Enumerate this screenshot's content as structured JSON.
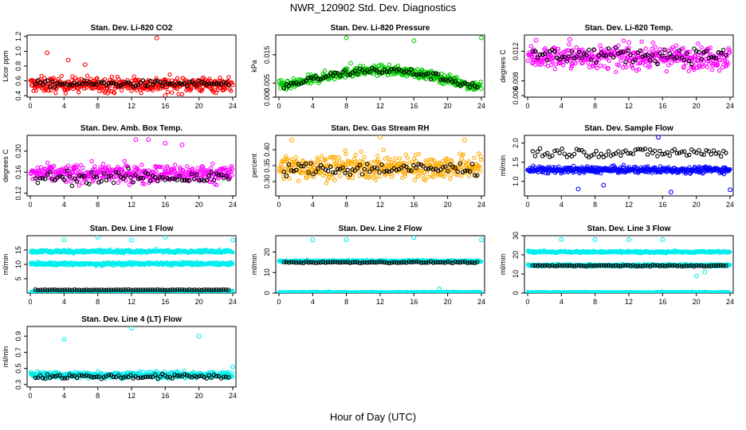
{
  "page": {
    "title": "NWR_120902 Std. Dev. Diagnostics",
    "xlabel": "Hour of Day (UTC)"
  },
  "chart_data": [
    {
      "type": "scatter",
      "title": "Stan. Dev. Li-820 CO2",
      "ylabel": "Licor ppm",
      "xlim": [
        0,
        24
      ],
      "ylim": [
        0.38,
        1.22
      ],
      "yticks": [
        "0.4",
        "0.6",
        "0.8",
        "1.0",
        "1.2"
      ],
      "ytick_values": [
        0.4,
        0.6,
        0.8,
        1.0,
        1.2
      ],
      "xticks": [
        "0",
        "4",
        "8",
        "12",
        "16",
        "20",
        "24"
      ],
      "color": "#ff0000",
      "base": 0.55,
      "spread": 0.12,
      "black_base": 0.56,
      "black_spread": 0.05,
      "outliers": [
        [
          15,
          1.18
        ],
        [
          2,
          0.98
        ],
        [
          4.5,
          0.88
        ],
        [
          6.5,
          0.82
        ],
        [
          16,
          0.4
        ]
      ]
    },
    {
      "type": "scatter",
      "title": "Stan. Dev. Li-820 Pressure",
      "ylabel": "kPa",
      "xlim": [
        0,
        24
      ],
      "ylim": [
        0.0,
        0.022
      ],
      "yticks": [
        "0.000",
        "0.005",
        "0.015"
      ],
      "ytick_values": [
        0.0,
        0.005,
        0.015
      ],
      "xticks": [
        "0",
        "4",
        "8",
        "12",
        "16",
        "20",
        "24"
      ],
      "color": "#00cc00",
      "base": 0.004,
      "spread": 0.002,
      "curve": "arch",
      "arch_peak": 0.0095,
      "black_base": 0.004,
      "black_spread": 0.0015,
      "outliers": [
        [
          8,
          0.021
        ],
        [
          24,
          0.021
        ],
        [
          16,
          0.02
        ],
        [
          8.5,
          0.012
        ]
      ]
    },
    {
      "type": "scatter",
      "title": "Stan. Dev. Li-820 Temp.",
      "ylabel": "degrees C",
      "xlim": [
        0,
        24
      ],
      "ylim": [
        0.0058,
        0.0142
      ],
      "yticks": [
        "0.006",
        "0.008",
        "0.012"
      ],
      "ytick_values": [
        0.006,
        0.008,
        0.012
      ],
      "xticks": [
        "0",
        "4",
        "8",
        "12",
        "16",
        "20",
        "24"
      ],
      "color": "#ff00ff",
      "base": 0.0112,
      "spread": 0.0018,
      "black_base": 0.0115,
      "black_spread": 0.0012,
      "outliers": [
        [
          1,
          0.0135
        ],
        [
          5,
          0.0136
        ],
        [
          12,
          0.0132
        ]
      ]
    },
    {
      "type": "scatter",
      "title": "Stan. Dev. Amb. Box Temp.",
      "ylabel": "degrees C",
      "xlim": [
        0,
        24
      ],
      "ylim": [
        0.115,
        0.23
      ],
      "yticks": [
        "0.12",
        "0.16",
        "0.20"
      ],
      "ytick_values": [
        0.12,
        0.16,
        0.2
      ],
      "xticks": [
        "0",
        "4",
        "8",
        "12",
        "16",
        "20",
        "24"
      ],
      "color": "#ff00ff",
      "base": 0.157,
      "spread": 0.02,
      "black_base": 0.15,
      "black_spread": 0.015,
      "outliers": [
        [
          12.5,
          0.222
        ],
        [
          14,
          0.222
        ],
        [
          16,
          0.215
        ],
        [
          18,
          0.212
        ]
      ]
    },
    {
      "type": "scatter",
      "title": "Stan. Dev. Gas Stream RH",
      "ylabel": "percent",
      "xlim": [
        0,
        24
      ],
      "ylim": [
        0.255,
        0.445
      ],
      "yticks": [
        "0.30",
        "0.35",
        "0.40"
      ],
      "ytick_values": [
        0.3,
        0.35,
        0.4
      ],
      "xticks": [
        "0",
        "4",
        "8",
        "12",
        "16",
        "20",
        "24"
      ],
      "color": "#ffaa00",
      "base": 0.345,
      "spread": 0.045,
      "black_base": 0.34,
      "black_spread": 0.025,
      "outliers": [
        [
          1.5,
          0.43
        ],
        [
          12,
          0.44
        ],
        [
          22,
          0.43
        ]
      ]
    },
    {
      "type": "scatter",
      "title": "Stan. Dev. Sample Flow",
      "ylabel": "ml/min",
      "xlim": [
        0,
        24
      ],
      "ylim": [
        0.62,
        2.2
      ],
      "yticks": [
        "1.0",
        "1.5",
        "2.0"
      ],
      "ytick_values": [
        1.0,
        1.5,
        2.0
      ],
      "xticks": [
        "0",
        "4",
        "8",
        "12",
        "16",
        "20",
        "24"
      ],
      "color": "#0000ff",
      "base": 1.3,
      "spread": 0.1,
      "black_base": 1.75,
      "black_spread": 0.15,
      "outliers": [
        [
          15.5,
          2.15
        ],
        [
          6,
          0.8
        ],
        [
          9,
          0.9
        ],
        [
          17,
          0.72
        ],
        [
          24,
          0.78
        ]
      ]
    },
    {
      "type": "scatter",
      "title": "Stan. Dev. Line 1 Flow",
      "ylabel": "ml/min",
      "xlim": [
        0,
        24
      ],
      "ylim": [
        0,
        20
      ],
      "yticks": [
        "5",
        "10",
        "15"
      ],
      "ytick_values": [
        5,
        10,
        15
      ],
      "xticks": [
        "0",
        "4",
        "8",
        "12",
        "16",
        "20",
        "24"
      ],
      "color": "#00eeee",
      "bands": [
        14.5,
        10.2,
        0.5
      ],
      "band_spread": 0.4,
      "black_base": 1.1,
      "black_spread": 0.15,
      "outliers": [
        [
          4,
          18.5
        ],
        [
          8,
          19.5
        ],
        [
          12,
          18.5
        ],
        [
          16,
          19.5
        ],
        [
          24,
          18.5
        ]
      ]
    },
    {
      "type": "scatter",
      "title": "Stan. Dev. Line 2 Flow",
      "ylabel": "ml/min",
      "xlim": [
        0,
        24
      ],
      "ylim": [
        0,
        28
      ],
      "yticks": [
        "0",
        "10",
        "20"
      ],
      "ytick_values": [
        0,
        10,
        20
      ],
      "xticks": [
        "0",
        "4",
        "8",
        "12",
        "16",
        "20",
        "24"
      ],
      "color": "#00eeee",
      "bands": [
        15.5,
        0.3
      ],
      "band_spread": 0.4,
      "black_base": 15.0,
      "black_spread": 0.4,
      "outliers": [
        [
          4,
          26
        ],
        [
          8,
          26
        ],
        [
          16,
          27
        ],
        [
          24,
          26
        ],
        [
          19,
          2
        ]
      ]
    },
    {
      "type": "scatter",
      "title": "Stan. Dev. Line 3 Flow",
      "ylabel": "ml/min",
      "xlim": [
        0,
        24
      ],
      "ylim": [
        0,
        30
      ],
      "yticks": [
        "0",
        "10",
        "20",
        "30"
      ],
      "ytick_values": [
        0,
        10,
        20,
        30
      ],
      "xticks": [
        "0",
        "4",
        "8",
        "12",
        "16",
        "20",
        "24"
      ],
      "color": "#00eeee",
      "bands": [
        21.5,
        14.5,
        0.3
      ],
      "band_spread": 0.4,
      "black_base": 14.3,
      "black_spread": 0.4,
      "outliers": [
        [
          4,
          28
        ],
        [
          8,
          28
        ],
        [
          12,
          28
        ],
        [
          16,
          28
        ],
        [
          20,
          9
        ],
        [
          21,
          11
        ]
      ]
    },
    {
      "type": "scatter",
      "title": "Stan. Dev. Line 4 (LT) Flow",
      "ylabel": "ml/min",
      "xlim": [
        0,
        24
      ],
      "ylim": [
        0.27,
        1.02
      ],
      "yticks": [
        "0.3",
        "0.5",
        "0.7",
        "0.9"
      ],
      "ytick_values": [
        0.3,
        0.5,
        0.7,
        0.9
      ],
      "xticks": [
        "0",
        "4",
        "8",
        "12",
        "16",
        "20",
        "24"
      ],
      "color": "#00eeee",
      "base": 0.42,
      "spread": 0.05,
      "black_base": 0.4,
      "black_spread": 0.035,
      "outliers": [
        [
          12,
          1.0
        ],
        [
          4,
          0.86
        ],
        [
          20,
          0.9
        ],
        [
          24,
          0.52
        ]
      ]
    }
  ]
}
